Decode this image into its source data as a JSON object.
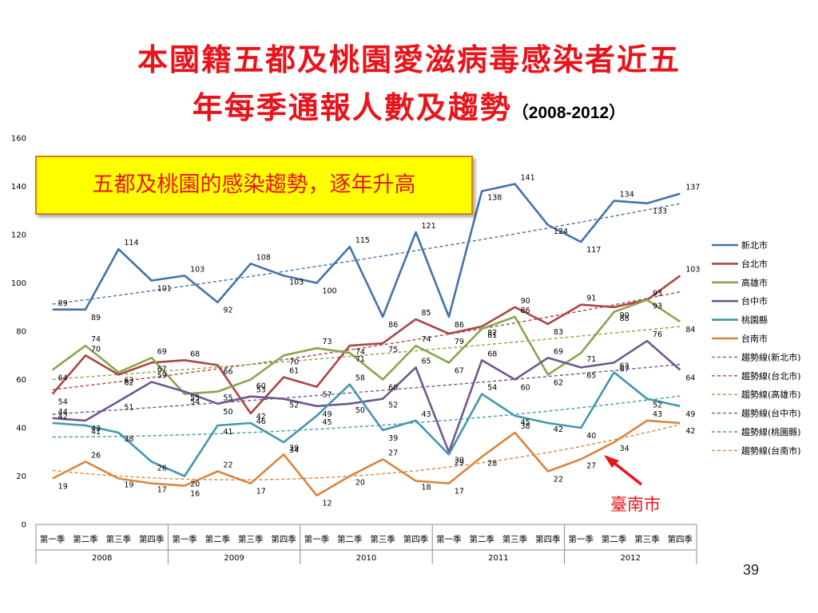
{
  "slide": {
    "title_line1": "本國籍五都及桃園愛滋病毒感染者近五",
    "title_line2": "年每季通報人數及趨勢",
    "title_years": "（2008-2012）",
    "callout": "五都及桃園的感染趨勢，逐年升高",
    "annotation": "臺南市",
    "page_number": "39"
  },
  "colors": {
    "title": "#e8141c",
    "callout_bg": "#ffff00",
    "callout_border": "#e07a10",
    "arrow": "#e8141c"
  },
  "chart_data": {
    "type": "line",
    "title": "",
    "xlabel": "",
    "ylabel": "",
    "ylim": [
      0,
      160
    ],
    "yticks": [
      0,
      20,
      40,
      60,
      80,
      100,
      120,
      140,
      160
    ],
    "grid": false,
    "legend_position": "right",
    "categories": [
      "第一季",
      "第二季",
      "第三季",
      "第四季",
      "第一季",
      "第二季",
      "第三季",
      "第四季",
      "第一季",
      "第二季",
      "第三季",
      "第四季",
      "第一季",
      "第二季",
      "第三季",
      "第四季",
      "第一季",
      "第二季",
      "第三季",
      "第四季"
    ],
    "years": [
      "2008",
      "2009",
      "2010",
      "2011",
      "2012"
    ],
    "series": [
      {
        "name": "新北市",
        "color": "#4572a7",
        "values": [
          89,
          89,
          114,
          101,
          103,
          92,
          108,
          103,
          100,
          115,
          86,
          121,
          86,
          138,
          141,
          124,
          117,
          134,
          133,
          137
        ]
      },
      {
        "name": "台北市",
        "color": "#aa4643",
        "values": [
          54,
          70,
          62,
          67,
          68,
          66,
          46,
          61,
          57,
          74,
          75,
          85,
          79,
          82,
          90,
          83,
          91,
          90,
          93,
          103
        ]
      },
      {
        "name": "高雄市",
        "color": "#89a54e",
        "values": [
          64,
          74,
          63,
          69,
          54,
          55,
          60,
          70,
          73,
          71,
          60,
          74,
          67,
          81,
          86,
          62,
          71,
          88,
          93,
          84
        ]
      },
      {
        "name": "台中市",
        "color": "#71588f",
        "values": [
          44,
          43,
          51,
          59,
          55,
          50,
          53,
          52,
          49,
          50,
          52,
          65,
          30,
          68,
          60,
          69,
          65,
          67,
          76,
          64
        ]
      },
      {
        "name": "桃園縣",
        "color": "#4198af",
        "values": [
          42,
          41,
          38,
          26,
          20,
          41,
          42,
          34,
          45,
          58,
          39,
          43,
          29,
          54,
          45,
          42,
          40,
          63,
          52,
          49
        ]
      },
      {
        "name": "台南市",
        "color": "#db843d",
        "values": [
          19,
          26,
          19,
          17,
          16,
          22,
          17,
          29,
          12,
          20,
          27,
          18,
          17,
          28,
          38,
          22,
          27,
          34,
          43,
          42
        ]
      }
    ],
    "trendlines": [
      {
        "name": "趨勢線(新北市)",
        "color": "#4572a7",
        "type": "exponential"
      },
      {
        "name": "趨勢線(台北市)",
        "color": "#aa4643",
        "type": "exponential"
      },
      {
        "name": "趨勢線(高雄市)",
        "color": "#89a54e",
        "type": "exponential"
      },
      {
        "name": "趨勢線(台中市)",
        "color": "#71588f",
        "type": "exponential"
      },
      {
        "name": "趨勢線(桃園縣)",
        "color": "#4198af",
        "type": "polynomial"
      },
      {
        "name": "趨勢線(台南市)",
        "color": "#db843d",
        "type": "polynomial"
      }
    ]
  }
}
